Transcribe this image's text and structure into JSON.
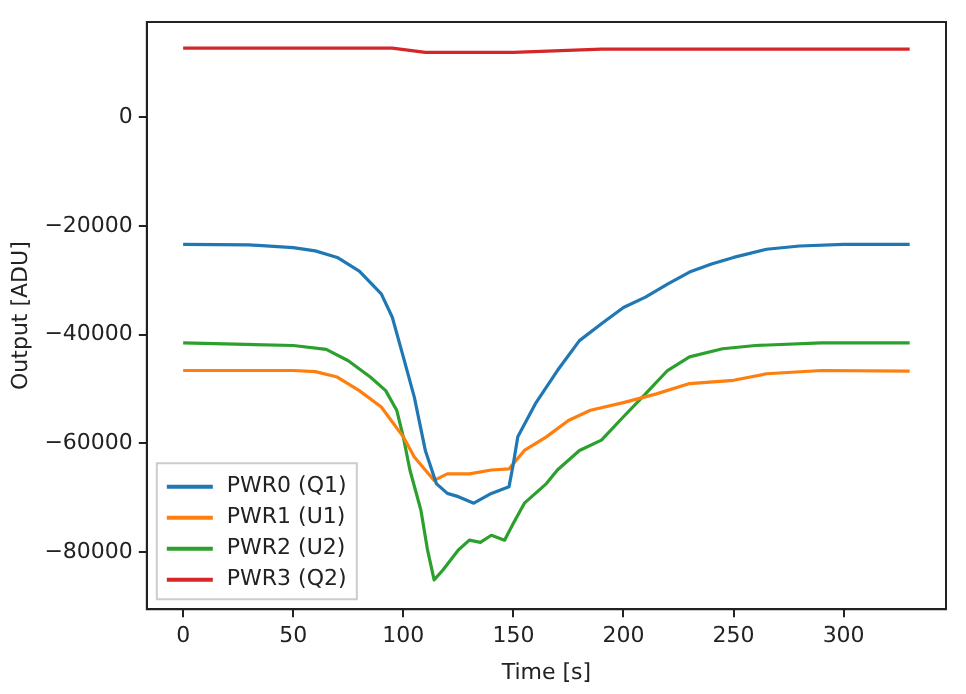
{
  "chart_data": {
    "type": "line",
    "xlabel": "Time [s]",
    "ylabel": "Output [ADU]",
    "xlim": [
      -16.5,
      346.5
    ],
    "xticks": [
      0,
      50,
      100,
      150,
      200,
      250,
      300
    ],
    "ylim": [
      -90500,
      17500
    ],
    "yticks": [
      -80000,
      -60000,
      -40000,
      -20000,
      0
    ],
    "grid": false,
    "legend": "bottom left",
    "marker": "none",
    "line_style": "solid",
    "series": [
      {
        "name": "PWR0 (Q1)",
        "color": "#1f77b4",
        "x": [
          0,
          30,
          50,
          60,
          70,
          80,
          90,
          95,
          100,
          105,
          110,
          115,
          120,
          125,
          132,
          140,
          148,
          150,
          152,
          160,
          170,
          180,
          190,
          200,
          210,
          220,
          230,
          240,
          250,
          265,
          280,
          300,
          330
        ],
        "values": [
          -23400,
          -23500,
          -24000,
          -24600,
          -25800,
          -28300,
          -32500,
          -36800,
          -44100,
          -51500,
          -61300,
          -67400,
          -69200,
          -69800,
          -71000,
          -69200,
          -68000,
          -63700,
          -58800,
          -52700,
          -46600,
          -41100,
          -38000,
          -35000,
          -33100,
          -30700,
          -28500,
          -27000,
          -25800,
          -24300,
          -23700,
          -23400,
          -23400
        ]
      },
      {
        "name": "PWR1 (U1)",
        "color": "#ff7f0e",
        "x": [
          0,
          50,
          60,
          70,
          80,
          90,
          100,
          105,
          110,
          114,
          120,
          130,
          140,
          148,
          155,
          165,
          175,
          185,
          200,
          215,
          230,
          250,
          265,
          290,
          330
        ],
        "values": [
          -46600,
          -46600,
          -46800,
          -47800,
          -50300,
          -53300,
          -58800,
          -62500,
          -64900,
          -66800,
          -65600,
          -65600,
          -64900,
          -64700,
          -61300,
          -58800,
          -55800,
          -53900,
          -52500,
          -50900,
          -49000,
          -48400,
          -47200,
          -46600,
          -46700
        ]
      },
      {
        "name": "PWR2 (U2)",
        "color": "#2ca02c",
        "x": [
          0,
          50,
          65,
          75,
          85,
          92,
          97,
          100,
          103,
          108,
          111,
          114,
          118,
          125,
          130,
          135,
          140,
          146,
          150,
          155,
          165,
          170,
          180,
          190,
          200,
          210,
          220,
          230,
          245,
          260,
          290,
          330
        ],
        "values": [
          -41500,
          -42000,
          -42700,
          -44800,
          -47800,
          -50300,
          -53900,
          -58800,
          -64900,
          -72300,
          -79600,
          -85100,
          -83300,
          -79600,
          -77800,
          -78200,
          -76900,
          -77800,
          -74700,
          -71000,
          -67400,
          -64900,
          -61300,
          -59400,
          -55100,
          -50900,
          -46600,
          -44100,
          -42600,
          -42000,
          -41500,
          -41500
        ]
      },
      {
        "name": "PWR3 (Q2)",
        "color": "#d62728",
        "x": [
          0,
          95,
          110,
          150,
          190,
          330
        ],
        "values": [
          12700,
          12700,
          11900,
          11900,
          12500,
          12500
        ]
      }
    ]
  }
}
